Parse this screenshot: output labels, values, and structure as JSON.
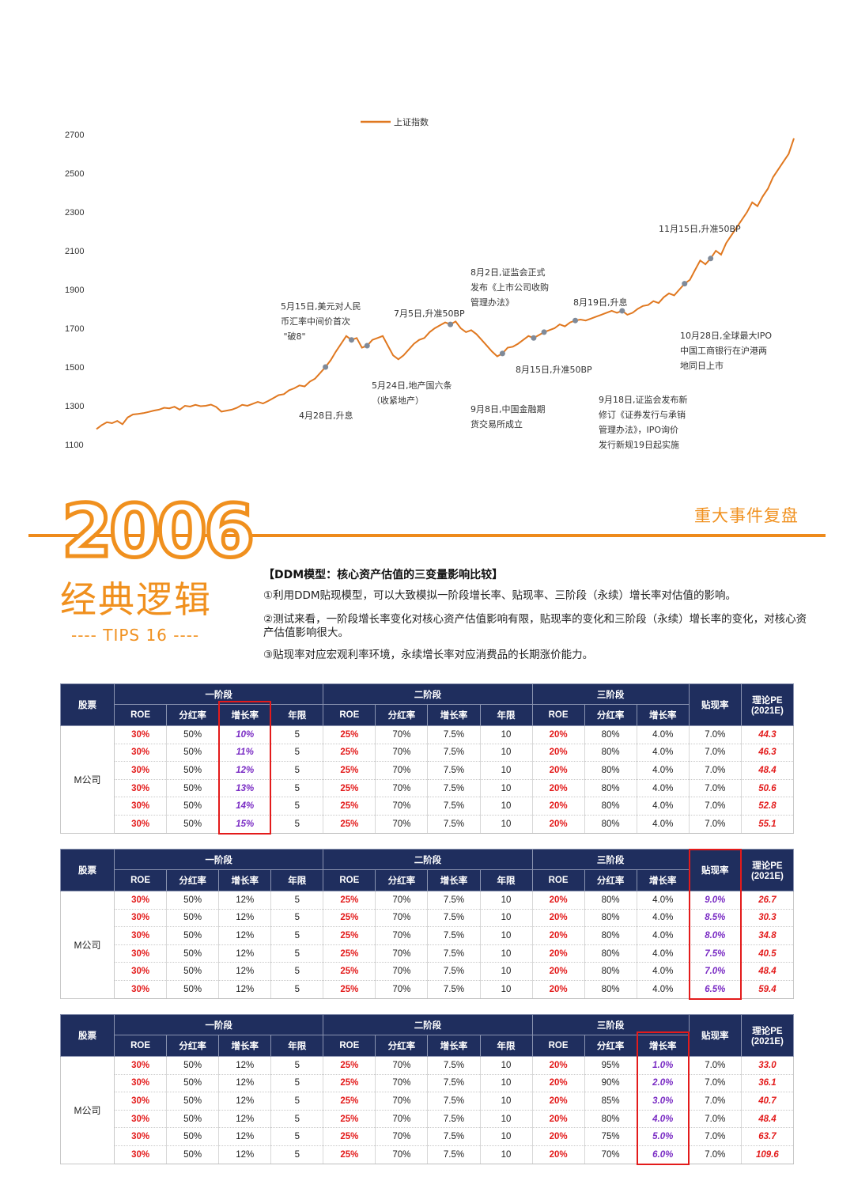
{
  "chart_data": {
    "type": "line",
    "title": "",
    "xlabel": "",
    "ylabel": "",
    "ylim": [
      1100,
      2700
    ],
    "yticks": [
      2700,
      2500,
      2300,
      2100,
      1900,
      1700,
      1500,
      1300,
      1100
    ],
    "legend": "top-center",
    "grid": false,
    "series": [
      {
        "name": "上证指数",
        "color": "#e07820",
        "values": [
          1180,
          1200,
          1215,
          1210,
          1222,
          1205,
          1240,
          1255,
          1258,
          1262,
          1268,
          1275,
          1280,
          1290,
          1287,
          1295,
          1280,
          1300,
          1296,
          1305,
          1298,
          1300,
          1306,
          1294,
          1270,
          1275,
          1280,
          1290,
          1305,
          1300,
          1310,
          1320,
          1312,
          1325,
          1340,
          1355,
          1360,
          1380,
          1390,
          1405,
          1400,
          1425,
          1440,
          1470,
          1500,
          1535,
          1580,
          1620,
          1660,
          1640,
          1650,
          1600,
          1610,
          1640,
          1650,
          1660,
          1610,
          1560,
          1540,
          1560,
          1590,
          1620,
          1640,
          1650,
          1680,
          1700,
          1715,
          1730,
          1720,
          1735,
          1700,
          1680,
          1690,
          1670,
          1640,
          1610,
          1580,
          1555,
          1570,
          1600,
          1605,
          1620,
          1640,
          1660,
          1650,
          1665,
          1680,
          1690,
          1700,
          1720,
          1710,
          1730,
          1740,
          1745,
          1740,
          1750,
          1760,
          1770,
          1780,
          1790,
          1780,
          1790,
          1770,
          1780,
          1800,
          1815,
          1820,
          1840,
          1830,
          1860,
          1880,
          1870,
          1900,
          1930,
          1950,
          2000,
          2050,
          2030,
          2060,
          2100,
          2080,
          2140,
          2180,
          2220,
          2260,
          2300,
          2350,
          2330,
          2380,
          2420,
          2480,
          2520,
          2560,
          2600,
          2680
        ]
      }
    ]
  },
  "annotations": [
    {
      "text": "5月15日,美元对人民\n币汇率中间价首次\n \"破8\"",
      "key": "a1"
    },
    {
      "text": "7月5日,升准50BP",
      "key": "a2"
    },
    {
      "text": "8月2日,证监会正式\n发布《上市公司收购\n管理办法》",
      "key": "a3"
    },
    {
      "text": "8月19日,升息",
      "key": "a4"
    },
    {
      "text": "11月15日,升准50BP",
      "key": "a5"
    },
    {
      "text": "10月28日,全球最大IPO\n中国工商银行在沪港两\n地同日上市",
      "key": "a6"
    },
    {
      "text": "5月24日,地产国六条\n（收紧地产）",
      "key": "a7"
    },
    {
      "text": "4月28日,升息",
      "key": "a8"
    },
    {
      "text": "9月8日,中国金融期\n货交易所成立",
      "key": "a9"
    },
    {
      "text": "8月15日,升准50BP",
      "key": "a10"
    },
    {
      "text": "9月18日,证监会发布新\n修订《证券发行与承销\n管理办法》，IPO询价\n发行新规19日起实施",
      "key": "a11"
    }
  ],
  "banner": {
    "year": "2006",
    "subtitle": "经典逻辑",
    "tips": "---- TIPS 16 ----",
    "right_title": "重大事件复盘"
  },
  "ddm": {
    "title": "【DDM模型：核心资产估值的三变量影响比较】",
    "p1": "①利用DDM贴现模型，可以大致模拟一阶段增长率、贴现率、三阶段（永续）增长率对估值的影响。",
    "p2": "②测试来看，一阶段增长率变化对核心资产估值影响有限，贴现率的变化和三阶段（永续）增长率的变化，对核心资产估值影响很大。",
    "p3": "③贴现率对应宏观利率环境，永续增长率对应消费品的长期涨价能力。"
  },
  "table_headers": {
    "stock": "股票",
    "stage1": "一阶段",
    "stage2": "二阶段",
    "stage3": "三阶段",
    "discount": "贴现率",
    "pe": "理论PE\n(2021E)",
    "cols": [
      "ROE",
      "分红率",
      "增长率",
      "年限",
      "ROE",
      "分红率",
      "增长率",
      "年限",
      "ROE",
      "分红率",
      "增长率"
    ]
  },
  "tables": [
    {
      "stock": "M公司",
      "rows": [
        [
          "30%",
          "50%",
          "10%",
          "5",
          "25%",
          "70%",
          "7.5%",
          "10",
          "20%",
          "80%",
          "4.0%",
          "7.0%",
          "44.3"
        ],
        [
          "30%",
          "50%",
          "11%",
          "5",
          "25%",
          "70%",
          "7.5%",
          "10",
          "20%",
          "80%",
          "4.0%",
          "7.0%",
          "46.3"
        ],
        [
          "30%",
          "50%",
          "12%",
          "5",
          "25%",
          "70%",
          "7.5%",
          "10",
          "20%",
          "80%",
          "4.0%",
          "7.0%",
          "48.4"
        ],
        [
          "30%",
          "50%",
          "13%",
          "5",
          "25%",
          "70%",
          "7.5%",
          "10",
          "20%",
          "80%",
          "4.0%",
          "7.0%",
          "50.6"
        ],
        [
          "30%",
          "50%",
          "14%",
          "5",
          "25%",
          "70%",
          "7.5%",
          "10",
          "20%",
          "80%",
          "4.0%",
          "7.0%",
          "52.8"
        ],
        [
          "30%",
          "50%",
          "15%",
          "5",
          "25%",
          "70%",
          "7.5%",
          "10",
          "20%",
          "80%",
          "4.0%",
          "7.0%",
          "55.1"
        ]
      ]
    },
    {
      "stock": "M公司",
      "rows": [
        [
          "30%",
          "50%",
          "12%",
          "5",
          "25%",
          "70%",
          "7.5%",
          "10",
          "20%",
          "80%",
          "4.0%",
          "9.0%",
          "26.7"
        ],
        [
          "30%",
          "50%",
          "12%",
          "5",
          "25%",
          "70%",
          "7.5%",
          "10",
          "20%",
          "80%",
          "4.0%",
          "8.5%",
          "30.3"
        ],
        [
          "30%",
          "50%",
          "12%",
          "5",
          "25%",
          "70%",
          "7.5%",
          "10",
          "20%",
          "80%",
          "4.0%",
          "8.0%",
          "34.8"
        ],
        [
          "30%",
          "50%",
          "12%",
          "5",
          "25%",
          "70%",
          "7.5%",
          "10",
          "20%",
          "80%",
          "4.0%",
          "7.5%",
          "40.5"
        ],
        [
          "30%",
          "50%",
          "12%",
          "5",
          "25%",
          "70%",
          "7.5%",
          "10",
          "20%",
          "80%",
          "4.0%",
          "7.0%",
          "48.4"
        ],
        [
          "30%",
          "50%",
          "12%",
          "5",
          "25%",
          "70%",
          "7.5%",
          "10",
          "20%",
          "80%",
          "4.0%",
          "6.5%",
          "59.4"
        ]
      ]
    },
    {
      "stock": "M公司",
      "rows": [
        [
          "30%",
          "50%",
          "12%",
          "5",
          "25%",
          "70%",
          "7.5%",
          "10",
          "20%",
          "95%",
          "1.0%",
          "7.0%",
          "33.0"
        ],
        [
          "30%",
          "50%",
          "12%",
          "5",
          "25%",
          "70%",
          "7.5%",
          "10",
          "20%",
          "90%",
          "2.0%",
          "7.0%",
          "36.1"
        ],
        [
          "30%",
          "50%",
          "12%",
          "5",
          "25%",
          "70%",
          "7.5%",
          "10",
          "20%",
          "85%",
          "3.0%",
          "7.0%",
          "40.7"
        ],
        [
          "30%",
          "50%",
          "12%",
          "5",
          "25%",
          "70%",
          "7.5%",
          "10",
          "20%",
          "80%",
          "4.0%",
          "7.0%",
          "48.4"
        ],
        [
          "30%",
          "50%",
          "12%",
          "5",
          "25%",
          "70%",
          "7.5%",
          "10",
          "20%",
          "75%",
          "5.0%",
          "7.0%",
          "63.7"
        ],
        [
          "30%",
          "50%",
          "12%",
          "5",
          "25%",
          "70%",
          "7.5%",
          "10",
          "20%",
          "70%",
          "6.0%",
          "7.0%",
          "109.6"
        ]
      ]
    }
  ]
}
